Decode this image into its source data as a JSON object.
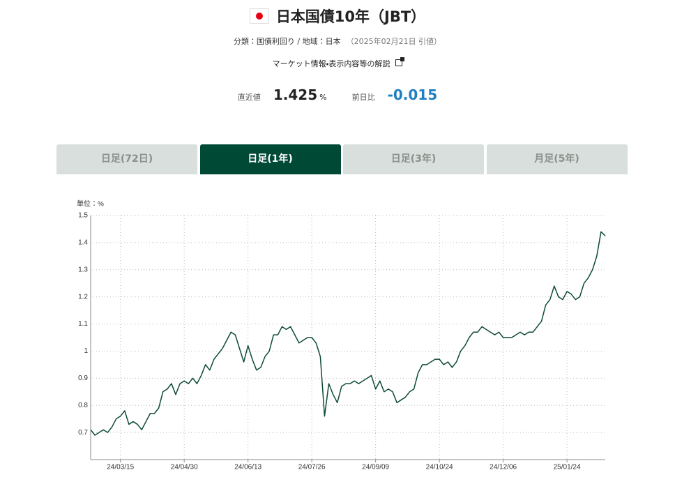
{
  "header": {
    "title": "日本国債10年（JBT）",
    "subtitle": "分類：国債利回り / 地域：日本",
    "date": "（2025年02月21日 引値）",
    "link": "マーケット情報・表示内容等の解説"
  },
  "quote": {
    "latest_label": "直近値",
    "latest": 1.425,
    "unit": "%",
    "change_label": "前日比",
    "change": -0.015
  },
  "tabs": [
    "日足(72日)",
    "日足(1年)",
    "日足(3年)",
    "月足(5年)"
  ],
  "active_tab": 1,
  "chart_data": {
    "type": "line",
    "unit_label": "単位：%",
    "color": "#0d4a35",
    "grid": true,
    "ylim": [
      0.6,
      1.5
    ],
    "yticks": [
      0.7,
      0.8,
      0.9,
      1,
      1.1,
      1.2,
      1.3,
      1.4,
      1.5
    ],
    "categories": [
      null,
      null,
      null,
      null,
      null,
      null,
      null,
      "24/03/15",
      null,
      null,
      null,
      null,
      null,
      null,
      null,
      null,
      null,
      null,
      null,
      null,
      null,
      null,
      "24/04/30",
      null,
      null,
      null,
      null,
      null,
      null,
      null,
      null,
      null,
      null,
      null,
      null,
      null,
      null,
      "24/06/13",
      null,
      null,
      null,
      null,
      null,
      null,
      null,
      null,
      null,
      null,
      null,
      null,
      null,
      null,
      "24/07/26",
      null,
      null,
      null,
      null,
      null,
      null,
      null,
      null,
      null,
      null,
      null,
      null,
      null,
      null,
      "24/09/09",
      null,
      null,
      null,
      null,
      null,
      null,
      null,
      null,
      null,
      null,
      null,
      null,
      null,
      null,
      "24/10/24",
      null,
      null,
      null,
      null,
      null,
      null,
      null,
      null,
      null,
      null,
      null,
      null,
      null,
      null,
      "24/12/06",
      null,
      null,
      null,
      null,
      null,
      null,
      null,
      null,
      null,
      null,
      null,
      null,
      null,
      null,
      "25/01/24",
      null,
      null,
      null,
      null,
      null,
      null,
      null,
      null,
      null
    ],
    "values": [
      0.71,
      0.69,
      0.7,
      0.71,
      0.7,
      0.72,
      0.75,
      0.76,
      0.78,
      0.73,
      0.74,
      0.73,
      0.71,
      0.74,
      0.77,
      0.77,
      0.79,
      0.85,
      0.86,
      0.88,
      0.84,
      0.88,
      0.89,
      0.88,
      0.9,
      0.88,
      0.91,
      0.95,
      0.93,
      0.97,
      0.99,
      1.01,
      1.04,
      1.07,
      1.06,
      1.01,
      0.96,
      1.02,
      0.97,
      0.93,
      0.94,
      0.98,
      1.0,
      1.06,
      1.06,
      1.09,
      1.08,
      1.09,
      1.06,
      1.03,
      1.04,
      1.05,
      1.05,
      1.03,
      0.98,
      0.76,
      0.88,
      0.84,
      0.81,
      0.87,
      0.88,
      0.88,
      0.89,
      0.88,
      0.89,
      0.9,
      0.91,
      0.86,
      0.89,
      0.85,
      0.86,
      0.85,
      0.81,
      0.82,
      0.83,
      0.85,
      0.86,
      0.92,
      0.95,
      0.95,
      0.96,
      0.97,
      0.97,
      0.95,
      0.96,
      0.94,
      0.96,
      1.0,
      1.02,
      1.05,
      1.07,
      1.07,
      1.09,
      1.08,
      1.07,
      1.06,
      1.07,
      1.05,
      1.05,
      1.05,
      1.06,
      1.07,
      1.06,
      1.07,
      1.07,
      1.09,
      1.11,
      1.17,
      1.19,
      1.24,
      1.2,
      1.19,
      1.22,
      1.21,
      1.19,
      1.2,
      1.25,
      1.27,
      1.3,
      1.35,
      1.44,
      1.425
    ]
  }
}
